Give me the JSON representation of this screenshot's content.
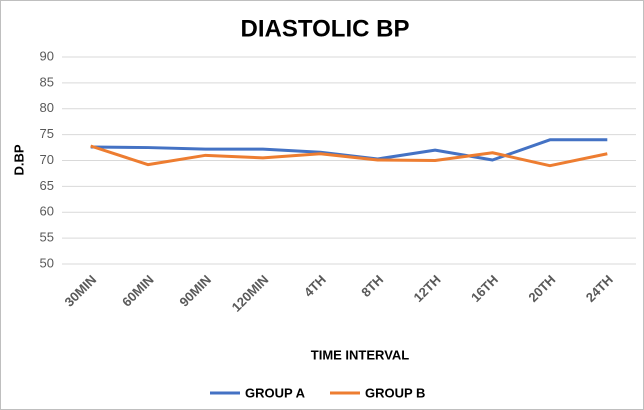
{
  "chart_data": {
    "type": "line",
    "title": "DIASTOLIC BP",
    "x_label": "TIME INTERVAL",
    "y_label": "D.BP",
    "categories": [
      "30MIN",
      "60MIN",
      "90MIN",
      "120MIN",
      "4TH",
      "8TH",
      "12TH",
      "16TH",
      "20TH",
      "24TH"
    ],
    "series": [
      {
        "name": "GROUP A",
        "color": "#4472c4",
        "values": [
          72.6,
          72.5,
          72.2,
          72.2,
          71.6,
          70.3,
          72.0,
          70.1,
          74.0,
          74.0
        ]
      },
      {
        "name": "GROUP B",
        "color": "#ed7d31",
        "values": [
          72.8,
          69.2,
          71.0,
          70.5,
          71.3,
          70.1,
          70.0,
          71.5,
          69.0,
          71.3
        ]
      }
    ],
    "ylim": [
      50,
      90
    ],
    "yticks": [
      50,
      55,
      60,
      65,
      70,
      75,
      80,
      85,
      90
    ],
    "grid": true,
    "legend": "bottom"
  }
}
